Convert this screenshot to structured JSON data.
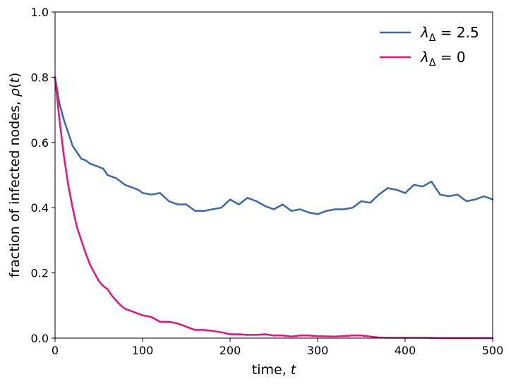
{
  "chart_data": {
    "type": "line",
    "xlabel": "time, t",
    "ylabel": "fraction of infected nodes, ρ(t)",
    "xlim": [
      0,
      500
    ],
    "ylim": [
      0,
      1.0
    ],
    "xticks": [
      "0",
      "100",
      "200",
      "300",
      "400",
      "500"
    ],
    "yticks": [
      "0.0",
      "0.2",
      "0.4",
      "0.6",
      "0.8",
      "1.0"
    ],
    "grid": false,
    "legend_position": "top-right",
    "series": [
      {
        "name": "λΔ = 2.5",
        "name_base": "λ",
        "name_sub": "Δ",
        "name_value": " = 2.5",
        "color": "#3a68aa",
        "x": [
          0,
          5,
          10,
          15,
          20,
          25,
          30,
          35,
          40,
          45,
          50,
          55,
          60,
          65,
          70,
          75,
          80,
          85,
          90,
          95,
          100,
          110,
          120,
          130,
          140,
          150,
          160,
          170,
          180,
          190,
          200,
          210,
          220,
          230,
          240,
          250,
          260,
          270,
          280,
          290,
          300,
          310,
          320,
          330,
          340,
          350,
          360,
          370,
          380,
          390,
          400,
          410,
          420,
          430,
          440,
          450,
          460,
          470,
          480,
          490,
          500
        ],
        "y": [
          0.8,
          0.72,
          0.67,
          0.63,
          0.59,
          0.57,
          0.55,
          0.545,
          0.535,
          0.53,
          0.525,
          0.52,
          0.5,
          0.495,
          0.49,
          0.48,
          0.47,
          0.465,
          0.46,
          0.455,
          0.445,
          0.44,
          0.445,
          0.42,
          0.41,
          0.41,
          0.39,
          0.39,
          0.395,
          0.4,
          0.425,
          0.41,
          0.43,
          0.42,
          0.405,
          0.395,
          0.41,
          0.39,
          0.395,
          0.385,
          0.38,
          0.39,
          0.395,
          0.395,
          0.4,
          0.42,
          0.415,
          0.44,
          0.46,
          0.455,
          0.445,
          0.47,
          0.465,
          0.48,
          0.44,
          0.435,
          0.44,
          0.42,
          0.425,
          0.435,
          0.425
        ]
      },
      {
        "name": "λΔ = 0",
        "name_base": "λ",
        "name_sub": "Δ",
        "name_value": " = 0",
        "color": "#e8127c",
        "x": [
          0,
          5,
          10,
          15,
          20,
          25,
          30,
          35,
          40,
          45,
          50,
          55,
          60,
          65,
          70,
          75,
          80,
          90,
          100,
          110,
          120,
          130,
          140,
          150,
          160,
          170,
          180,
          190,
          200,
          210,
          220,
          230,
          240,
          250,
          260,
          270,
          280,
          290,
          300,
          320,
          340,
          350,
          360,
          370,
          380,
          400,
          420,
          440,
          460,
          480,
          500
        ],
        "y": [
          0.8,
          0.67,
          0.56,
          0.47,
          0.4,
          0.34,
          0.3,
          0.26,
          0.225,
          0.2,
          0.175,
          0.16,
          0.15,
          0.13,
          0.115,
          0.1,
          0.09,
          0.08,
          0.07,
          0.065,
          0.05,
          0.05,
          0.045,
          0.035,
          0.025,
          0.025,
          0.022,
          0.018,
          0.012,
          0.012,
          0.01,
          0.01,
          0.012,
          0.008,
          0.008,
          0.005,
          0.008,
          0.008,
          0.006,
          0.005,
          0.008,
          0.008,
          0.005,
          0.002,
          0.001,
          0.001,
          0.001,
          0.0,
          0.0,
          0.0,
          0.0
        ]
      }
    ]
  }
}
